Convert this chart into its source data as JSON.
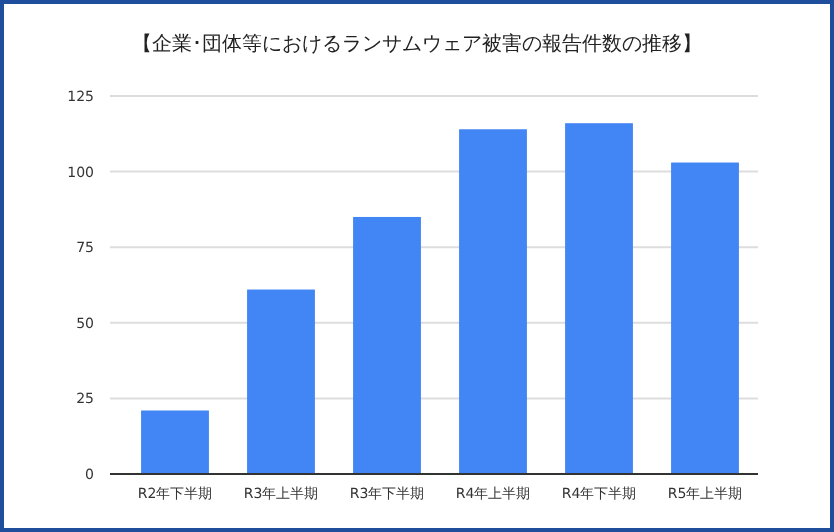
{
  "chart_data": {
    "type": "bar",
    "title": "【企業･団体等におけるランサムウェア被害の報告件数の推移】",
    "categories": [
      "R2年下半期",
      "R3年上半期",
      "R3年下半期",
      "R4年上半期",
      "R4年下半期",
      "R5年上半期"
    ],
    "values": [
      21,
      61,
      85,
      114,
      116,
      103
    ],
    "color": "#4285f4",
    "ylim": [
      0,
      125
    ],
    "yticks": [
      0,
      25,
      50,
      75,
      100,
      125
    ],
    "grid": "y"
  }
}
